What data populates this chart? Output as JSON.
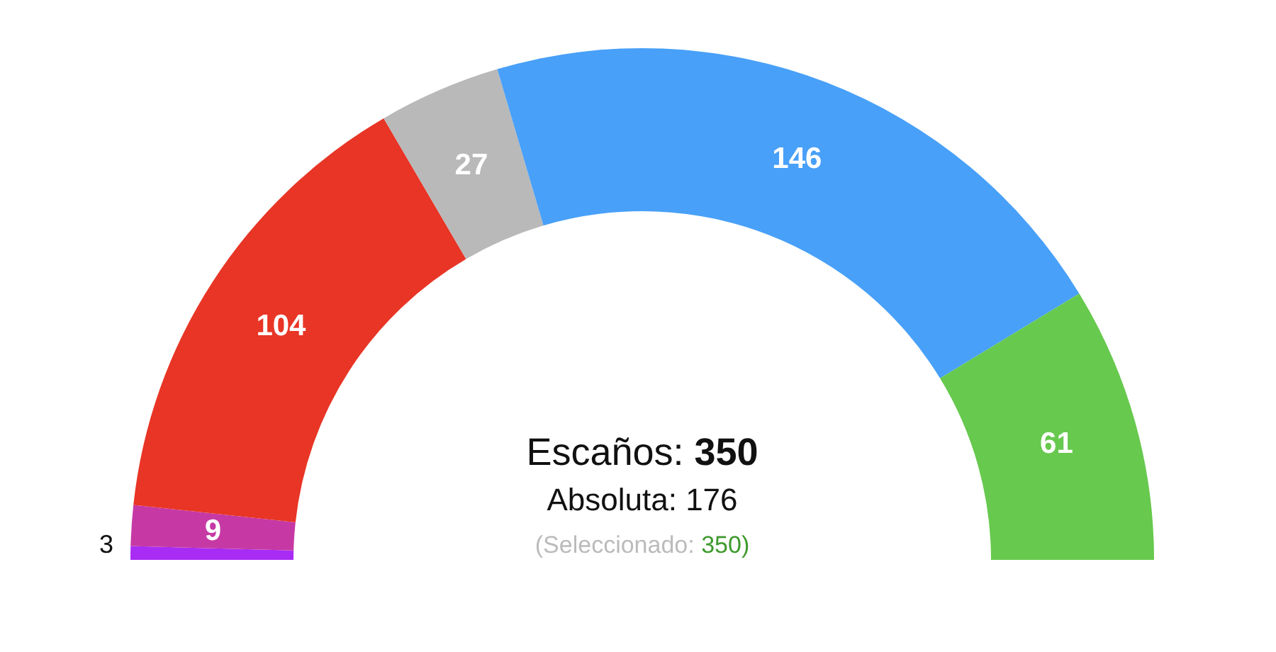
{
  "chart_data": {
    "type": "donut",
    "categories": [
      null,
      null,
      null,
      null,
      null,
      null
    ],
    "values": [
      3,
      9,
      104,
      27,
      146,
      61
    ],
    "colors": [
      "#a82cf3",
      "#c639a5",
      "#e83526",
      "#b9b9b9",
      "#48a0f8",
      "#67c94e"
    ],
    "data_labels": true,
    "annotations": [
      "Escaños: 350",
      "Absoluta: 176",
      "(Seleccionado: 350)"
    ]
  }
}
